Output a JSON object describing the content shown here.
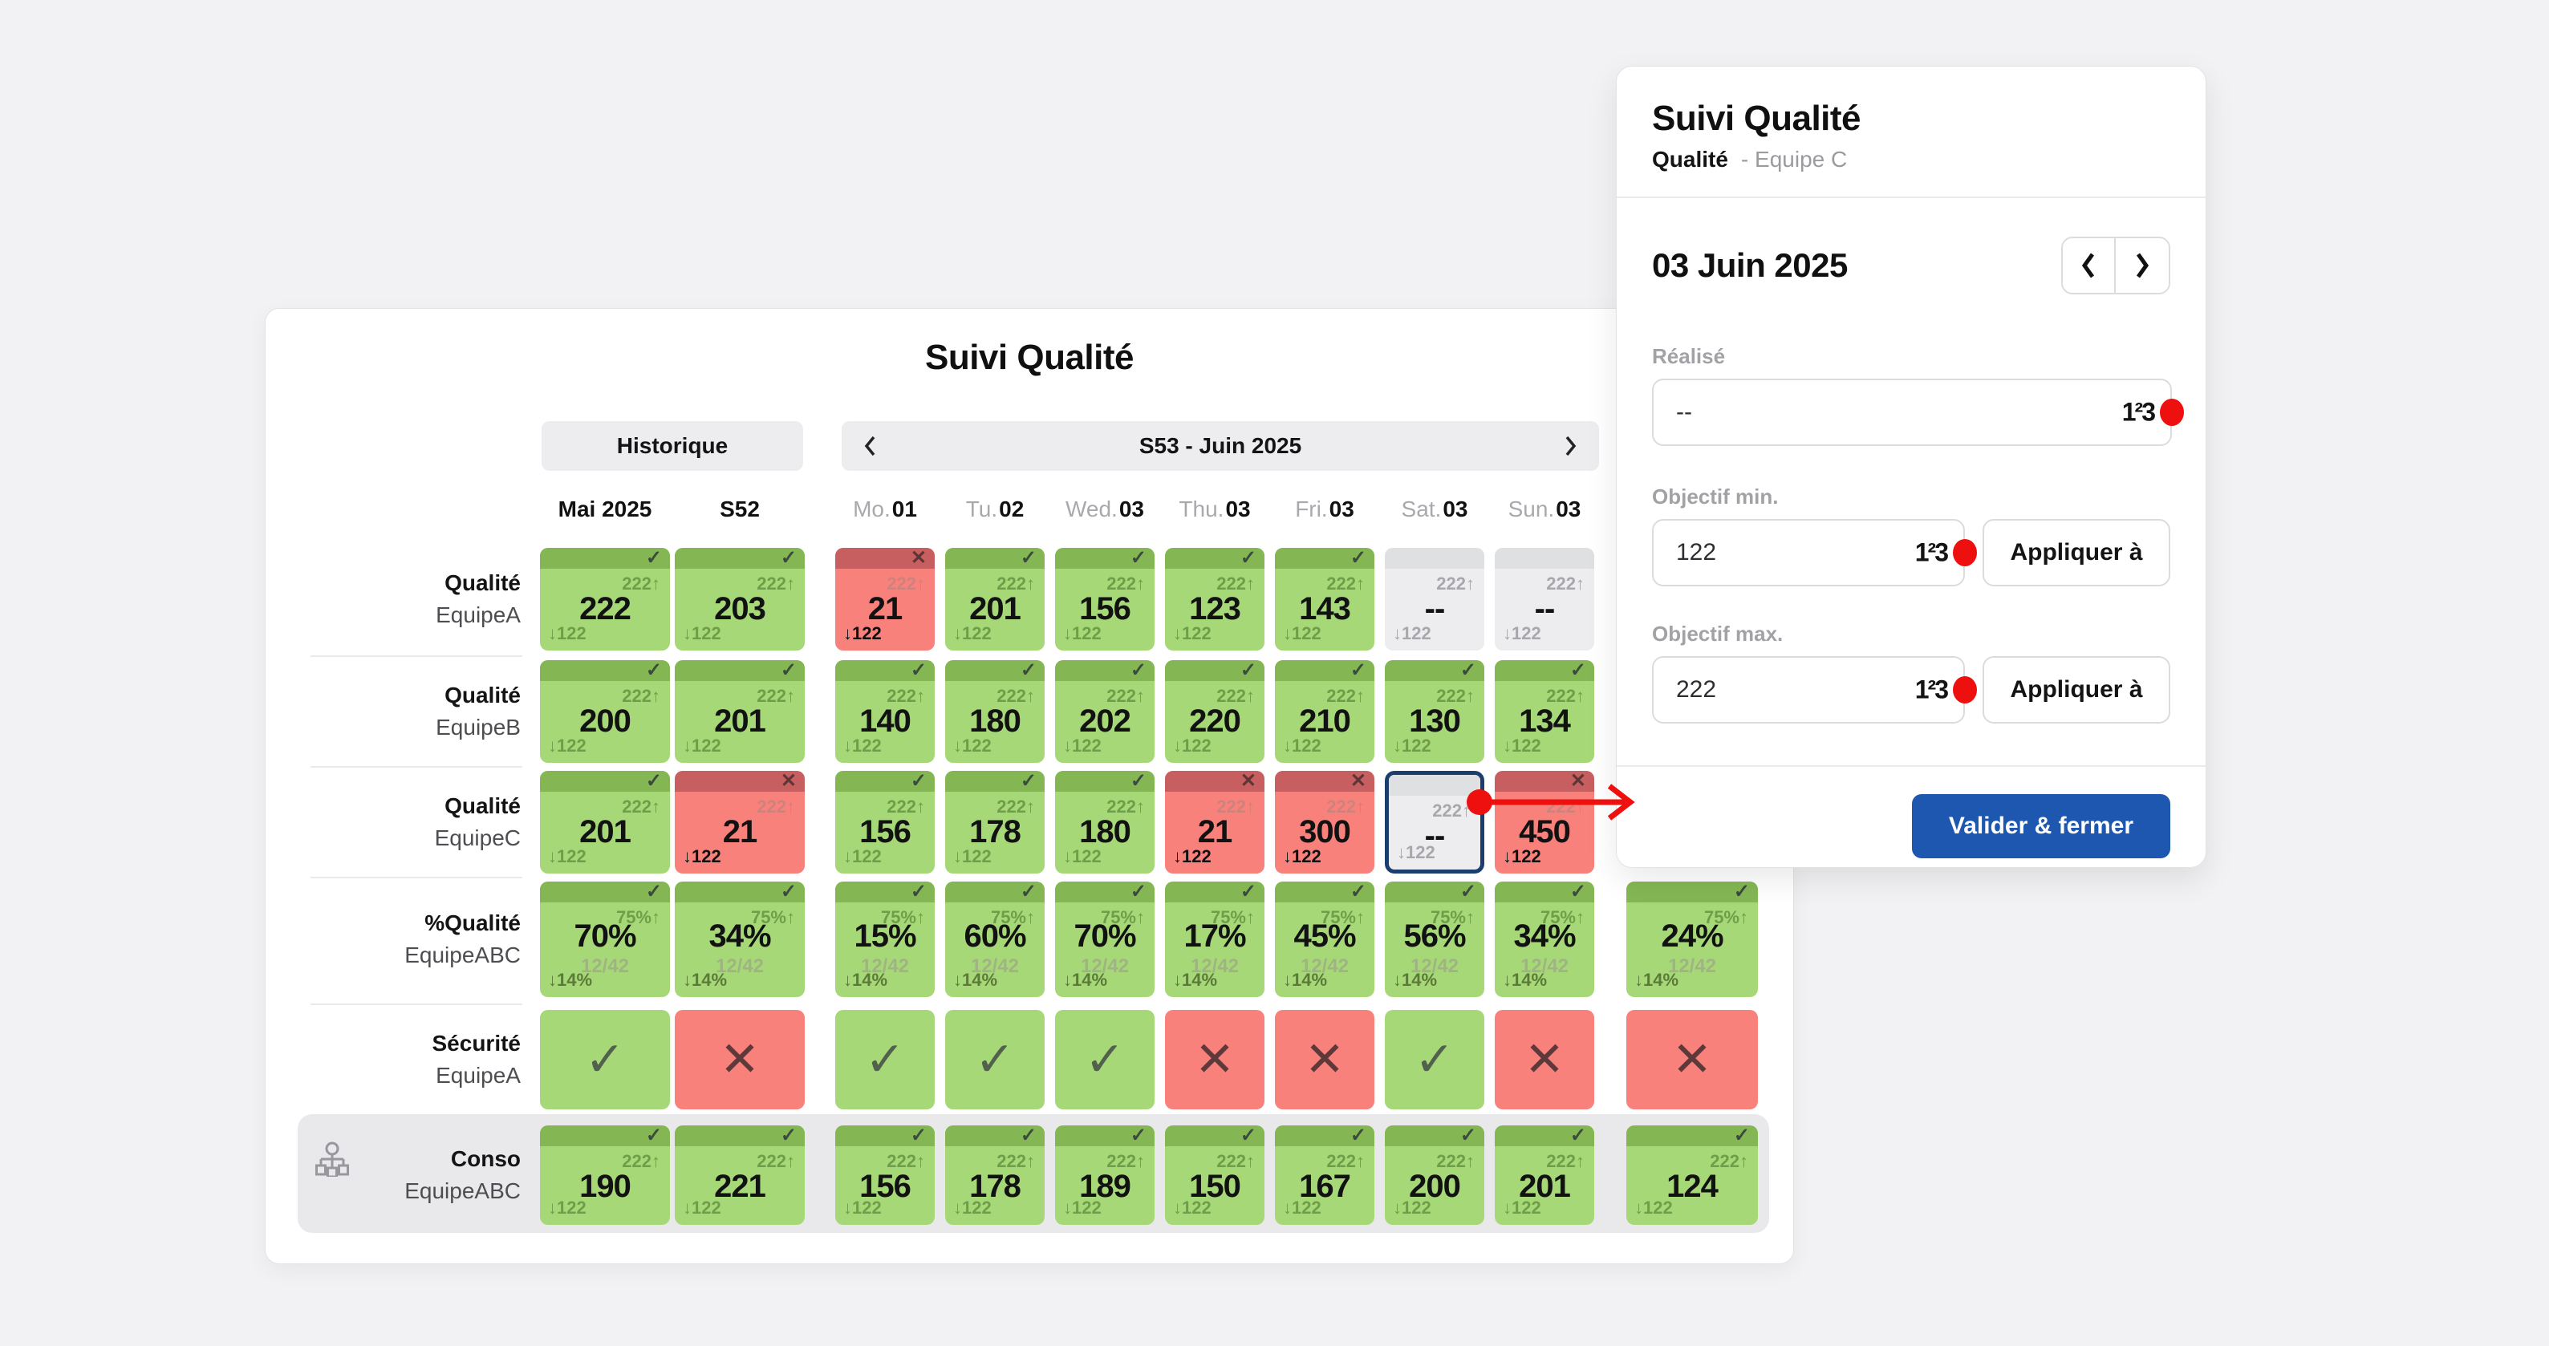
{
  "colors": {
    "page_bg": "#f2f2f4",
    "ok_green": "#a7d877",
    "ok_band_green": "#84b754",
    "fail_red": "#f8817b",
    "fail_band_red": "#c75f60",
    "empty_gray": "#ededef",
    "selected_border_navy": "#1c3e6e",
    "accent_red": "#ee0f0f",
    "primary_blue": "#1e57b0"
  },
  "icons": {
    "check": "✓",
    "cross": "✕",
    "numeric": "1²3",
    "prev_chevron": "‹",
    "next_chevron": "›",
    "hierarchy": "org-chart"
  },
  "board": {
    "title": "Suivi Qualité",
    "history_button": "Historique",
    "week_label": "S53 - Juin 2025",
    "columns": [
      {
        "kind": "month",
        "label": "Mai 2025"
      },
      {
        "kind": "week",
        "label": "S52"
      },
      {
        "kind": "day",
        "prefix": "Mo.",
        "num": "01"
      },
      {
        "kind": "day",
        "prefix": "Tu.",
        "num": "02"
      },
      {
        "kind": "day",
        "prefix": "Wed.",
        "num": "03"
      },
      {
        "kind": "day",
        "prefix": "Thu.",
        "num": "03"
      },
      {
        "kind": "day",
        "prefix": "Fri.",
        "num": "03"
      },
      {
        "kind": "day",
        "prefix": "Sat.",
        "num": "03"
      },
      {
        "kind": "day",
        "prefix": "Sun.",
        "num": "03"
      },
      {
        "kind": "extra",
        "label": ""
      }
    ],
    "rows": [
      {
        "metric": "Qualité",
        "team": "EquipeA",
        "kind": "value",
        "top": "222↑",
        "bottom": "↓122",
        "cells": [
          {
            "v": "222",
            "s": "ok"
          },
          {
            "v": "203",
            "s": "ok"
          },
          {
            "v": "21",
            "s": "fail"
          },
          {
            "v": "201",
            "s": "ok"
          },
          {
            "v": "156",
            "s": "ok"
          },
          {
            "v": "123",
            "s": "ok"
          },
          {
            "v": "143",
            "s": "ok"
          },
          {
            "v": "--",
            "s": "empty"
          },
          {
            "v": "--",
            "s": "empty"
          },
          null
        ]
      },
      {
        "metric": "Qualité",
        "team": "EquipeB",
        "kind": "value",
        "top": "222↑",
        "bottom": "↓122",
        "cells": [
          {
            "v": "200",
            "s": "ok"
          },
          {
            "v": "201",
            "s": "ok"
          },
          {
            "v": "140",
            "s": "ok"
          },
          {
            "v": "180",
            "s": "ok"
          },
          {
            "v": "202",
            "s": "ok"
          },
          {
            "v": "220",
            "s": "ok"
          },
          {
            "v": "210",
            "s": "ok"
          },
          {
            "v": "130",
            "s": "ok"
          },
          {
            "v": "134",
            "s": "ok"
          },
          null
        ]
      },
      {
        "metric": "Qualité",
        "team": "EquipeC",
        "kind": "value",
        "top": "222↑",
        "bottom": "↓122",
        "cells": [
          {
            "v": "201",
            "s": "ok"
          },
          {
            "v": "21",
            "s": "fail"
          },
          {
            "v": "156",
            "s": "ok"
          },
          {
            "v": "178",
            "s": "ok"
          },
          {
            "v": "180",
            "s": "ok"
          },
          {
            "v": "21",
            "s": "fail"
          },
          {
            "v": "300",
            "s": "fail"
          },
          {
            "v": "--",
            "s": "selected"
          },
          {
            "v": "450",
            "s": "fail"
          },
          null
        ]
      },
      {
        "metric": "%Qualité",
        "team": "EquipeABC",
        "kind": "percent",
        "top": "75%↑",
        "bottom": "↓14%",
        "sub": "12/42",
        "cells": [
          {
            "v": "70%",
            "s": "ok"
          },
          {
            "v": "34%",
            "s": "ok"
          },
          {
            "v": "15%",
            "s": "ok"
          },
          {
            "v": "60%",
            "s": "ok"
          },
          {
            "v": "70%",
            "s": "ok"
          },
          {
            "v": "17%",
            "s": "ok"
          },
          {
            "v": "45%",
            "s": "ok"
          },
          {
            "v": "56%",
            "s": "ok"
          },
          {
            "v": "34%",
            "s": "ok"
          },
          {
            "v": "24%",
            "s": "ok"
          }
        ]
      },
      {
        "metric": "Sécurité",
        "team": "EquipeA",
        "kind": "bool",
        "cells": [
          {
            "s": "ok"
          },
          {
            "s": "fail"
          },
          {
            "s": "ok"
          },
          {
            "s": "ok"
          },
          {
            "s": "ok"
          },
          {
            "s": "fail"
          },
          {
            "s": "fail"
          },
          {
            "s": "ok"
          },
          {
            "s": "fail"
          },
          {
            "s": "fail"
          }
        ]
      },
      {
        "metric": "Conso",
        "team": "EquipeABC",
        "kind": "value",
        "top": "222↑",
        "bottom": "↓122",
        "highlight": true,
        "cells": [
          {
            "v": "190",
            "s": "ok"
          },
          {
            "v": "221",
            "s": "ok"
          },
          {
            "v": "156",
            "s": "ok"
          },
          {
            "v": "178",
            "s": "ok"
          },
          {
            "v": "189",
            "s": "ok"
          },
          {
            "v": "150",
            "s": "ok"
          },
          {
            "v": "167",
            "s": "ok"
          },
          {
            "v": "200",
            "s": "ok"
          },
          {
            "v": "201",
            "s": "ok"
          },
          {
            "v": "124",
            "s": "ok"
          }
        ]
      }
    ]
  },
  "panel": {
    "title": "Suivi Qualité",
    "subtitle_metric": "Qualité",
    "subtitle_team": "- Equipe C",
    "date": "03 Juin 2025",
    "realise": {
      "label": "Réalisé",
      "value": "--"
    },
    "objectif_min": {
      "label": "Objectif min.",
      "value": "122",
      "apply": "Appliquer à"
    },
    "objectif_max": {
      "label": "Objectif max.",
      "value": "222",
      "apply": "Appliquer à"
    },
    "submit": "Valider & fermer"
  }
}
